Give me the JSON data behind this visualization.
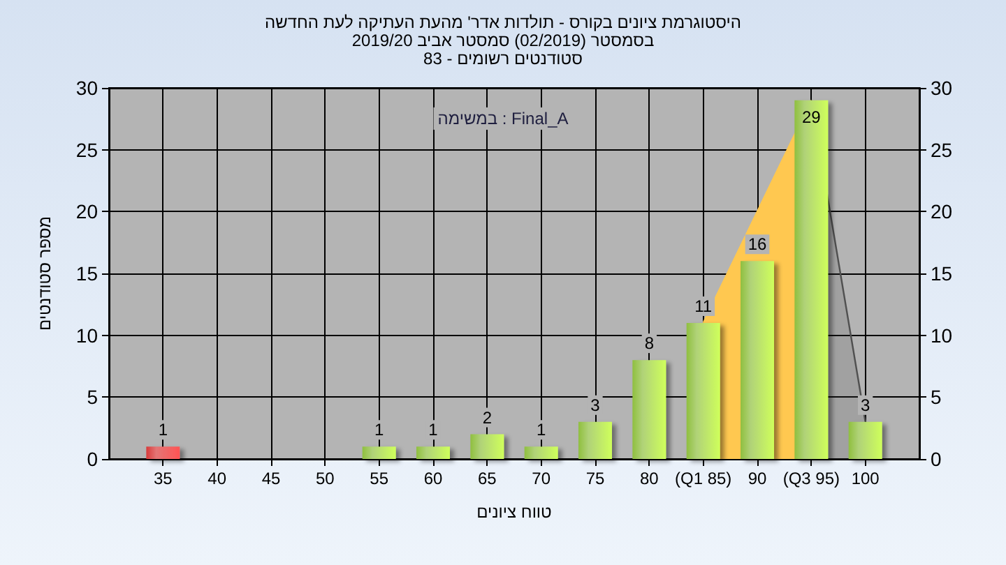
{
  "chart_data": {
    "type": "bar",
    "title": "היסטוגרמת ציונים בקורס - תולדות אדר' מהעת העתיקה לעת החדשה",
    "subtitle": "בסמסטר  (02/2019)  סמסטר אביב 2019/20\nסטודנטים רשומים - 83",
    "xlabel": "טווח ציונים",
    "ylabel": "מספר סטודנטים",
    "annotations": [
      "במשימה : Final_A"
    ],
    "xlim": [
      30,
      105
    ],
    "xticks": [
      35,
      40,
      45,
      50,
      55,
      60,
      65,
      70,
      75,
      80,
      {
        "value": 85,
        "label": "(Q1 85)"
      },
      90,
      {
        "value": 95,
        "label": "(Q3 95)"
      },
      100
    ],
    "ylim": [
      0,
      30
    ],
    "yticks": [
      0,
      5,
      10,
      15,
      20,
      25,
      30
    ],
    "y2lim": [
      0,
      30
    ],
    "y2ticks": [
      0,
      5,
      10,
      15,
      20,
      25,
      30
    ],
    "grid": true,
    "series": [
      {
        "type": "area",
        "x": [
          85,
          95
        ],
        "values": [
          11,
          29
        ],
        "color": "#ffc850"
      },
      {
        "type": "area",
        "x": [
          95,
          100
        ],
        "values": [
          29,
          3
        ],
        "color": "#505050"
      },
      {
        "x": [
          35,
          40,
          45,
          50,
          55,
          60,
          65,
          70,
          75,
          80,
          85,
          90,
          95,
          100
        ],
        "values": [
          1,
          0,
          0,
          0,
          1,
          1,
          2,
          1,
          3,
          8,
          11,
          16,
          29,
          3
        ],
        "colors": [
          "#d83a3a",
          "#8fbf3f",
          "#8fbf3f",
          "#8fbf3f",
          "#8fbf3f",
          "#8fbf3f",
          "#8fbf3f",
          "#8fbf3f",
          "#8fbf3f",
          "#8fbf3f",
          "#8fbf3f",
          "#8fbf3f",
          "#8fbf3f",
          "#8fbf3f"
        ],
        "value_labels": [
          "1",
          null,
          null,
          null,
          "1",
          "1",
          "2",
          "1",
          "3",
          "8",
          "11",
          "16",
          "29",
          "3"
        ]
      }
    ]
  }
}
